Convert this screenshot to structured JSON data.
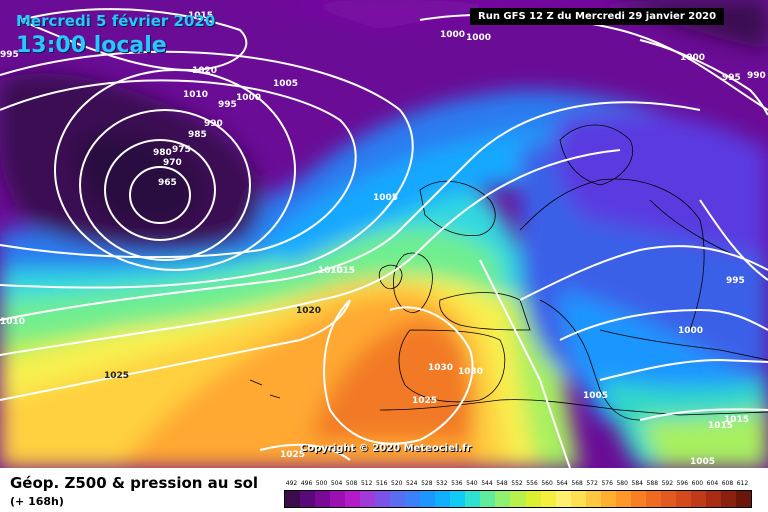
{
  "header": {
    "date": "Mercredi 5 février 2020",
    "time": "13:00 locale",
    "run": "Run GFS 12 Z du Mercredi 29 janvier 2020"
  },
  "copyright": "Copyright © 2020 Meteociel.fr",
  "footer": {
    "title": "Géop. Z500 & pression au sol",
    "subtitle": "(+ 168h)"
  },
  "scale": {
    "labels": [
      "492",
      "496",
      "500",
      "504",
      "508",
      "512",
      "516",
      "520",
      "524",
      "528",
      "532",
      "536",
      "540",
      "544",
      "548",
      "552",
      "556",
      "560",
      "564",
      "568",
      "572",
      "576",
      "580",
      "584",
      "588",
      "592",
      "596",
      "600",
      "604",
      "608",
      "612"
    ],
    "colors": [
      "#3a0c4c",
      "#5a0a78",
      "#7a0a96",
      "#9a10b0",
      "#b41ac8",
      "#a23ad8",
      "#7a52e8",
      "#5a6cf0",
      "#3a80f8",
      "#1e96ff",
      "#10b0ff",
      "#10ccf4",
      "#30e0d0",
      "#60ec9c",
      "#90f070",
      "#b8f04c",
      "#dcf030",
      "#f4f040",
      "#fff070",
      "#ffe050",
      "#ffc840",
      "#ffb030",
      "#ff9828",
      "#f88024",
      "#ef6a22",
      "#e35a20",
      "#d44a1c",
      "#c03a18",
      "#a82c14",
      "#8a2010",
      "#6a1608"
    ]
  },
  "pressure_labels": [
    "1015",
    "1020",
    "1010",
    "1000",
    "995",
    "995",
    "990",
    "985",
    "975",
    "980",
    "970",
    "965",
    "1005",
    "1000",
    "1000",
    "995",
    "990",
    "1000",
    "1005",
    "1005",
    "1015",
    "1010",
    "1020",
    "1025",
    "1030",
    "1030",
    "1025",
    "1010",
    "1000",
    "995",
    "1005",
    "1015",
    "1015",
    "1025"
  ],
  "colors": {
    "land_lines": "#000000",
    "isobars": "#ffffff"
  }
}
